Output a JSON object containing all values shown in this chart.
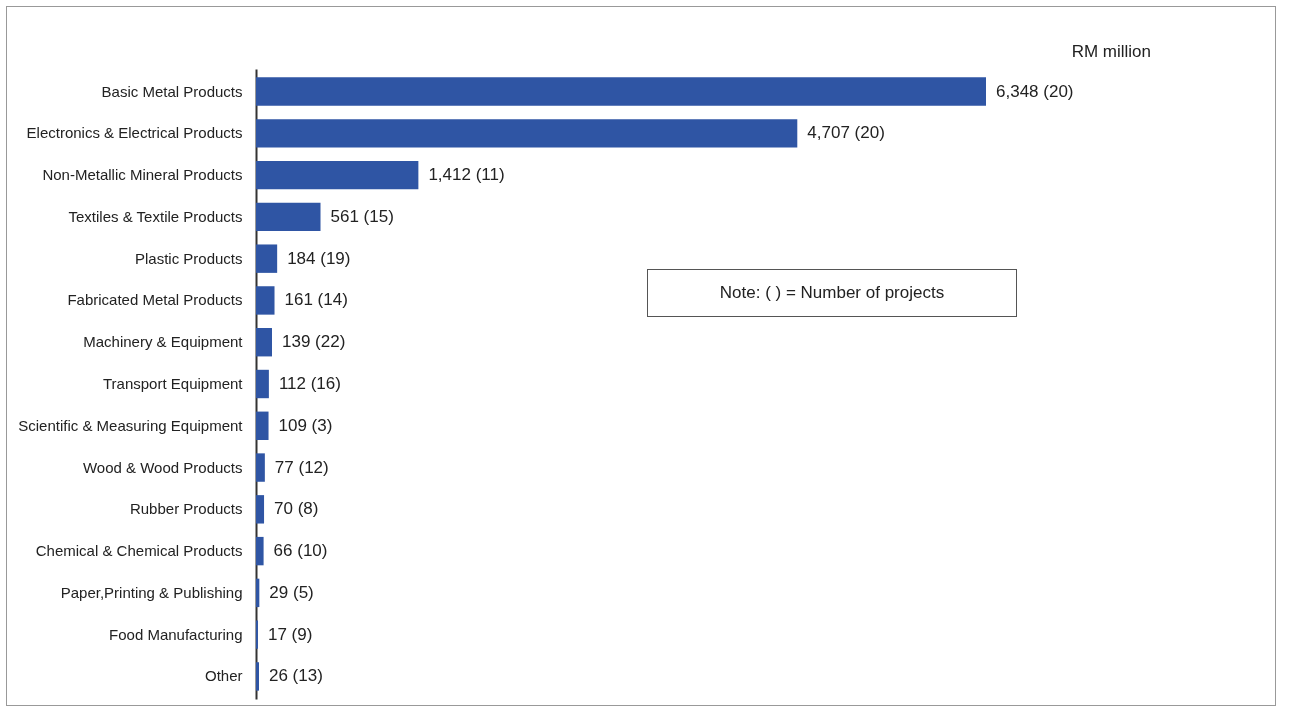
{
  "chart_data": {
    "type": "bar",
    "orientation": "horizontal",
    "categories": [
      "Basic Metal Products",
      "Electronics & Electrical Products",
      "Non-Metallic Mineral Products",
      "Textiles & Textile Products",
      "Plastic Products",
      "Fabricated Metal Products",
      "Machinery & Equipment",
      "Transport Equipment",
      "Scientific & Measuring Equipment",
      "Wood & Wood Products",
      "Rubber Products",
      "Chemical & Chemical Products",
      "Paper,Printing & Publishing",
      "Food Manufacturing",
      "Other"
    ],
    "values": [
      6348,
      4707,
      1412,
      561,
      184,
      161,
      139,
      112,
      109,
      77,
      70,
      66,
      29,
      17,
      26
    ],
    "value_labels": [
      "6,348 (20)",
      "4,707 (20)",
      "1,412 (11)",
      "561 (15)",
      "184 (19)",
      "161 (14)",
      "139 (22)",
      "112 (16)",
      "109 (3)",
      "77 (12)",
      "70 (8)",
      "66 (10)",
      "29 (5)",
      "17 (9)",
      "26 (13)"
    ],
    "color": "#2f55a4",
    "annotations": [
      "RM million",
      "Note: ( ) = Number of projects"
    ],
    "grid": false
  }
}
